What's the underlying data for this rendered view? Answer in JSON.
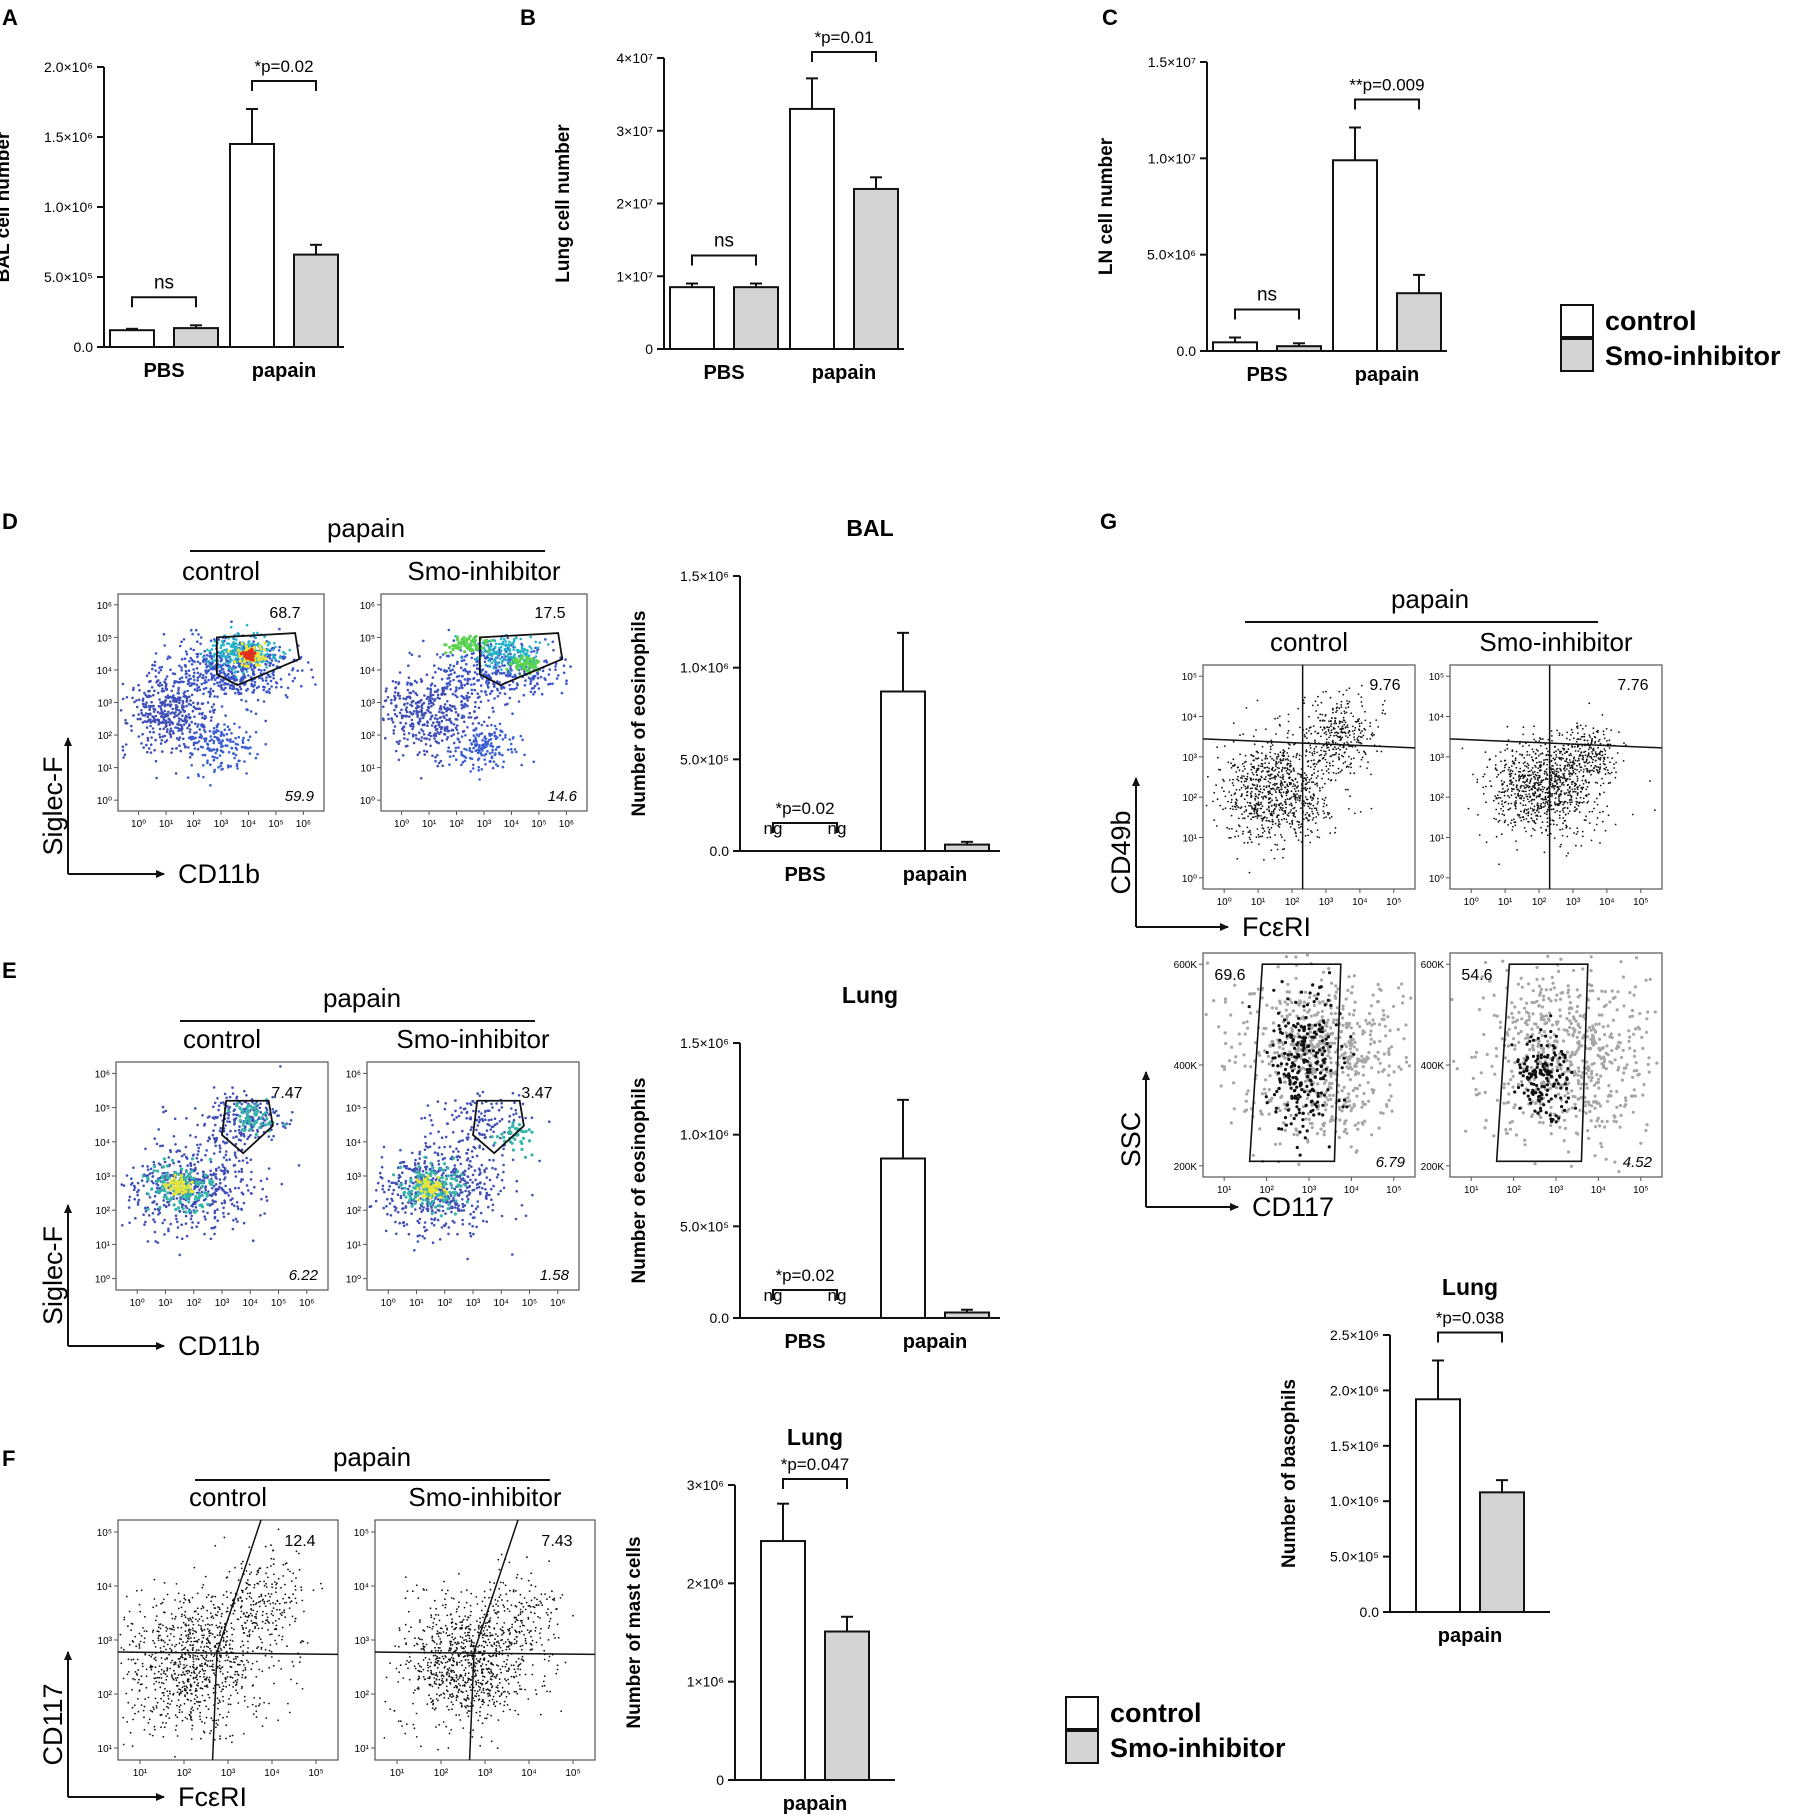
{
  "figure": {
    "panel_letters": [
      "A",
      "B",
      "C",
      "D",
      "E",
      "F",
      "G"
    ],
    "legend_top": {
      "control": "control",
      "smo": "Smo-inhibitor"
    },
    "legend_bottom": {
      "control": "control",
      "smo": "Smo-inhibitor"
    }
  },
  "flow": {
    "D": {
      "header": "papain",
      "col_labels": [
        "control",
        "Smo-inhibitor"
      ],
      "y_label": "Siglec-F",
      "x_label": "CD11b",
      "gate_pct": [
        "68.7",
        "17.5"
      ],
      "corner_pct": [
        "59.9",
        "14.6"
      ],
      "ticks": [
        "10⁰",
        "10¹",
        "10²",
        "10³",
        "10⁴",
        "10⁵",
        "10⁶"
      ]
    },
    "E": {
      "header": "papain",
      "col_labels": [
        "control",
        "Smo-inhibitor"
      ],
      "y_label": "Siglec-F",
      "x_label": "CD11b",
      "gate_pct": [
        "7.47",
        "3.47"
      ],
      "corner_pct": [
        "6.22",
        "1.58"
      ],
      "ticks": [
        "10⁰",
        "10¹",
        "10²",
        "10³",
        "10⁴",
        "10⁵",
        "10⁶"
      ]
    },
    "F": {
      "header": "papain",
      "col_labels": [
        "control",
        "Smo-inhibitor"
      ],
      "y_label": "CD117",
      "x_label": "FcεRI",
      "gate_pct": [
        "12.4",
        "7.43"
      ],
      "ticks": [
        "10¹",
        "10²",
        "10³",
        "10⁴",
        "10⁵"
      ]
    },
    "G_top": {
      "header": "papain",
      "col_labels": [
        "control",
        "Smo-inhibitor"
      ],
      "y_label": "CD49b",
      "x_label": "FcεRI",
      "gate_pct": [
        "9.76",
        "7.76"
      ],
      "ticks": [
        "10⁰",
        "10¹",
        "10²",
        "10³",
        "10⁴",
        "10⁵"
      ]
    },
    "G_bottom": {
      "y_label": "SSC",
      "x_label": "CD117",
      "gate_pct": [
        "69.6",
        "54.6"
      ],
      "corner_pct": [
        "6.79",
        "4.52"
      ],
      "y_ticks": [
        "200K",
        "400K",
        "600K"
      ],
      "x_ticks": [
        "10¹",
        "10²",
        "10³",
        "10⁴",
        "10⁵"
      ]
    }
  },
  "chart_data": [
    {
      "id": "A",
      "type": "bar",
      "title": "",
      "ylabel": "BAL cell number",
      "xlabel": "",
      "categories": [
        "PBS",
        "papain"
      ],
      "series": [
        {
          "name": "control",
          "values": [
            120000,
            1450000
          ],
          "errors": [
            10000,
            250000
          ]
        },
        {
          "name": "Smo-inhibitor",
          "values": [
            135000,
            660000
          ],
          "errors": [
            20000,
            70000
          ]
        }
      ],
      "ylim": [
        0,
        2000000
      ],
      "yticks": [
        0,
        500000,
        1000000,
        1500000,
        2000000
      ],
      "ytick_labels": [
        "0.0",
        "5.0×10⁵",
        "1.0×10⁶",
        "1.5×10⁶",
        "2.0×10⁶"
      ],
      "annotations": [
        "ns",
        "*p=0.02"
      ]
    },
    {
      "id": "B",
      "type": "bar",
      "title": "",
      "ylabel": "Lung cell number",
      "xlabel": "",
      "categories": [
        "PBS",
        "papain"
      ],
      "series": [
        {
          "name": "control",
          "values": [
            8500000,
            33000000
          ],
          "errors": [
            500000,
            4200000
          ]
        },
        {
          "name": "Smo-inhibitor",
          "values": [
            8500000,
            22000000
          ],
          "errors": [
            500000,
            1600000
          ]
        }
      ],
      "ylim": [
        0,
        40000000
      ],
      "yticks": [
        0,
        10000000,
        20000000,
        30000000,
        40000000
      ],
      "ytick_labels": [
        "0",
        "1×10⁷",
        "2×10⁷",
        "3×10⁷",
        "4×10⁷"
      ],
      "annotations": [
        "ns",
        "*p=0.01"
      ]
    },
    {
      "id": "C",
      "type": "bar",
      "title": "",
      "ylabel": "LN cell number",
      "xlabel": "",
      "categories": [
        "PBS",
        "papain"
      ],
      "series": [
        {
          "name": "control",
          "values": [
            450000,
            9900000
          ],
          "errors": [
            250000,
            1700000
          ]
        },
        {
          "name": "Smo-inhibitor",
          "values": [
            250000,
            3000000
          ],
          "errors": [
            150000,
            950000
          ]
        }
      ],
      "ylim": [
        0,
        15000000
      ],
      "yticks": [
        0,
        5000000,
        10000000,
        15000000
      ],
      "ytick_labels": [
        "0.0",
        "5.0×10⁶",
        "1.0×10⁷",
        "1.5×10⁷"
      ],
      "annotations": [
        "ns",
        "**p=0.009"
      ]
    },
    {
      "id": "D-bar",
      "type": "bar",
      "title": "BAL",
      "ylabel": "Number of eosinophils",
      "xlabel": "",
      "categories": [
        "PBS",
        "papain"
      ],
      "series": [
        {
          "name": "control",
          "values": [
            0,
            870000
          ],
          "errors": [
            0,
            320000
          ]
        },
        {
          "name": "Smo-inhibitor",
          "values": [
            0,
            35000
          ],
          "errors": [
            0,
            15000
          ]
        }
      ],
      "not_given": [
        true,
        false
      ],
      "ylim": [
        0,
        1500000
      ],
      "yticks": [
        0,
        500000,
        1000000,
        1500000
      ],
      "ytick_labels": [
        "0.0",
        "5.0×10⁵",
        "1.0×10⁶",
        "1.5×10⁶"
      ],
      "annotations": [
        "ng",
        "ng",
        "*p=0.02"
      ]
    },
    {
      "id": "E-bar",
      "type": "bar",
      "title": "Lung",
      "ylabel": "Number of eosinophils",
      "xlabel": "",
      "categories": [
        "PBS",
        "papain"
      ],
      "series": [
        {
          "name": "control",
          "values": [
            0,
            870000
          ],
          "errors": [
            0,
            320000
          ]
        },
        {
          "name": "Smo-inhibitor",
          "values": [
            0,
            30000
          ],
          "errors": [
            0,
            15000
          ]
        }
      ],
      "not_given": [
        true,
        false
      ],
      "ylim": [
        0,
        1500000
      ],
      "yticks": [
        0,
        500000,
        1000000,
        1500000
      ],
      "ytick_labels": [
        "0.0",
        "5.0×10⁵",
        "1.0×10⁶",
        "1.5×10⁶"
      ],
      "annotations": [
        "ng",
        "ng",
        "*p=0.02"
      ]
    },
    {
      "id": "F-bar",
      "type": "bar",
      "title": "Lung",
      "ylabel": "Number of mast cells",
      "xlabel": "",
      "categories": [
        "papain"
      ],
      "series": [
        {
          "name": "control",
          "values": [
            2430000
          ],
          "errors": [
            380000
          ]
        },
        {
          "name": "Smo-inhibitor",
          "values": [
            1510000
          ],
          "errors": [
            150000
          ]
        }
      ],
      "ylim": [
        0,
        3000000
      ],
      "yticks": [
        0,
        1000000,
        2000000,
        3000000
      ],
      "ytick_labels": [
        "0",
        "1×10⁶",
        "2×10⁶",
        "3×10⁶"
      ],
      "annotations": [
        "*p=0.047"
      ]
    },
    {
      "id": "G-bar",
      "type": "bar",
      "title": "Lung",
      "ylabel": "Number of basophils",
      "xlabel": "",
      "categories": [
        "papain"
      ],
      "series": [
        {
          "name": "control",
          "values": [
            1920000
          ],
          "errors": [
            350000
          ]
        },
        {
          "name": "Smo-inhibitor",
          "values": [
            1080000
          ],
          "errors": [
            110000
          ]
        }
      ],
      "ylim": [
        0,
        2500000
      ],
      "yticks": [
        0,
        500000,
        1000000,
        1500000,
        2000000,
        2500000
      ],
      "ytick_labels": [
        "0.0",
        "5.0×10⁵",
        "1.0×10⁶",
        "1.5×10⁶",
        "2.0×10⁶",
        "2.5×10⁶"
      ],
      "annotations": [
        "*p=0.038"
      ]
    }
  ]
}
